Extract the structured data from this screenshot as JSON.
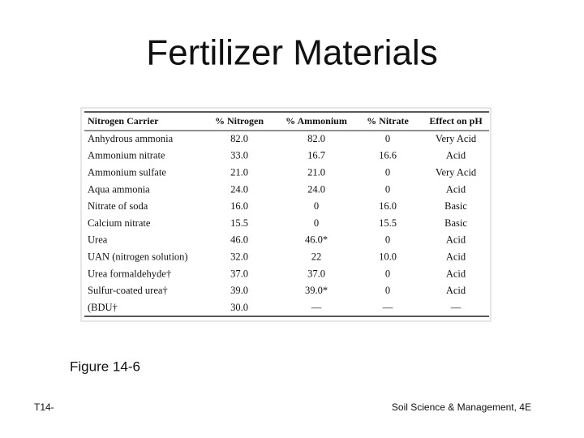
{
  "title": "Fertilizer Materials",
  "table": {
    "header": [
      "Nitrogen Carrier",
      "% Nitrogen",
      "% Ammonium",
      "% Nitrate",
      "Effect on pH"
    ],
    "rows": [
      [
        "Anhydrous ammonia",
        "82.0",
        "82.0",
        "0",
        "Very Acid"
      ],
      [
        "Ammonium nitrate",
        "33.0",
        "16.7",
        "16.6",
        "Acid"
      ],
      [
        "Ammonium sulfate",
        "21.0",
        "21.0",
        "0",
        "Very Acid"
      ],
      [
        "Aqua ammonia",
        "24.0",
        "24.0",
        "0",
        "Acid"
      ],
      [
        "Nitrate of soda",
        "16.0",
        "0",
        "16.0",
        "Basic"
      ],
      [
        "Calcium nitrate",
        "15.5",
        "0",
        "15.5",
        "Basic"
      ],
      [
        "Urea",
        "46.0",
        "46.0*",
        "0",
        "Acid"
      ],
      [
        "UAN (nitrogen solution)",
        "32.0",
        "22",
        "10.0",
        "Acid"
      ],
      [
        "Urea formaldehyde†",
        "37.0",
        "37.0",
        "0",
        "Acid"
      ],
      [
        "Sulfur-coated urea†",
        "39.0",
        "39.0*",
        "0",
        "Acid"
      ],
      [
        "(BDU†",
        "30.0",
        "—",
        "—",
        "—"
      ]
    ]
  },
  "caption": "Figure 14-6",
  "footer": {
    "left": "T14-",
    "right": "Soil Science & Management, 4E"
  }
}
